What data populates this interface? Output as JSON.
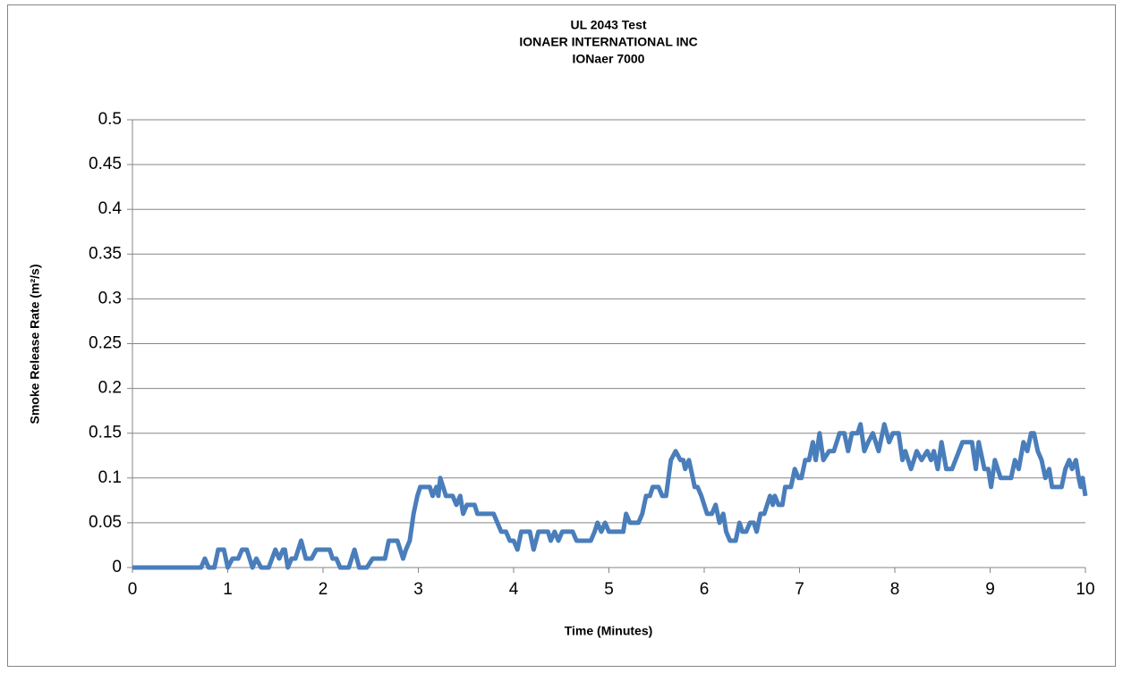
{
  "chart_data": {
    "type": "line",
    "title": [
      "UL 2043 Test",
      "IONAER INTERNATIONAL INC",
      "IONaer 7000"
    ],
    "xlabel": "Time (Minutes)",
    "ylabel": "Smoke Release Rate (m²/s)",
    "color": "#4a7ebb",
    "xlim": [
      0,
      10
    ],
    "xticks": [
      0,
      1,
      2,
      3,
      4,
      5,
      6,
      7,
      8,
      9,
      10
    ],
    "ylim": [
      0,
      0.5
    ],
    "yticks": [
      0,
      0.05,
      0.1,
      0.15,
      0.2,
      0.25,
      0.3,
      0.35,
      0.4,
      0.45,
      0.5
    ],
    "grid": true,
    "x": [
      0,
      0.72,
      0.76,
      0.8,
      0.86,
      0.9,
      0.96,
      1.0,
      1.05,
      1.11,
      1.15,
      1.2,
      1.26,
      1.3,
      1.35,
      1.43,
      1.5,
      1.54,
      1.58,
      1.6,
      1.63,
      1.67,
      1.71,
      1.77,
      1.82,
      1.88,
      1.93,
      2.07,
      2.1,
      2.14,
      2.18,
      2.27,
      2.33,
      2.38,
      2.46,
      2.52,
      2.65,
      2.69,
      2.78,
      2.84,
      2.87,
      2.91,
      2.95,
      2.99,
      3.02,
      3.12,
      3.15,
      3.19,
      3.21,
      3.23,
      3.29,
      3.36,
      3.4,
      3.44,
      3.47,
      3.51,
      3.59,
      3.62,
      3.79,
      3.87,
      3.92,
      3.96,
      4.0,
      4.04,
      4.08,
      4.17,
      4.21,
      4.26,
      4.36,
      4.39,
      4.43,
      4.47,
      4.51,
      4.62,
      4.66,
      4.81,
      4.85,
      4.88,
      4.92,
      4.96,
      5.0,
      5.15,
      5.18,
      5.22,
      5.31,
      5.35,
      5.39,
      5.43,
      5.46,
      5.52,
      5.56,
      5.6,
      5.65,
      5.7,
      5.75,
      5.78,
      5.8,
      5.84,
      5.9,
      5.93,
      5.97,
      6.03,
      6.08,
      6.12,
      6.16,
      6.2,
      6.23,
      6.27,
      6.33,
      6.37,
      6.4,
      6.44,
      6.48,
      6.52,
      6.55,
      6.59,
      6.63,
      6.69,
      6.72,
      6.74,
      6.78,
      6.82,
      6.85,
      6.91,
      6.95,
      6.99,
      7.02,
      7.06,
      7.1,
      7.14,
      7.17,
      7.21,
      7.25,
      7.31,
      7.36,
      7.42,
      7.47,
      7.51,
      7.55,
      7.61,
      7.64,
      7.68,
      7.72,
      7.77,
      7.83,
      7.89,
      7.94,
      7.98,
      8.04,
      8.08,
      8.11,
      8.17,
      8.23,
      8.28,
      8.34,
      8.38,
      8.41,
      8.45,
      8.49,
      8.54,
      8.6,
      8.71,
      8.81,
      8.85,
      8.88,
      8.94,
      8.98,
      9.01,
      9.05,
      9.11,
      9.22,
      9.26,
      9.3,
      9.35,
      9.39,
      9.43,
      9.46,
      9.5,
      9.54,
      9.58,
      9.62,
      9.65,
      9.75,
      9.79,
      9.83,
      9.86,
      9.9,
      9.93,
      9.95,
      9.97,
      10
    ],
    "values": [
      0,
      0,
      0.01,
      0,
      0,
      0.02,
      0.02,
      0,
      0.01,
      0.01,
      0.02,
      0.02,
      0,
      0.01,
      0,
      0,
      0.02,
      0.01,
      0.02,
      0.02,
      0,
      0.01,
      0.01,
      0.03,
      0.01,
      0.01,
      0.02,
      0.02,
      0.01,
      0.01,
      0,
      0,
      0.02,
      0,
      0,
      0.01,
      0.01,
      0.03,
      0.03,
      0.01,
      0.02,
      0.03,
      0.06,
      0.08,
      0.09,
      0.09,
      0.08,
      0.09,
      0.08,
      0.1,
      0.08,
      0.08,
      0.07,
      0.08,
      0.06,
      0.07,
      0.07,
      0.06,
      0.06,
      0.04,
      0.04,
      0.03,
      0.03,
      0.02,
      0.04,
      0.04,
      0.02,
      0.04,
      0.04,
      0.03,
      0.04,
      0.03,
      0.04,
      0.04,
      0.03,
      0.03,
      0.04,
      0.05,
      0.04,
      0.05,
      0.04,
      0.04,
      0.06,
      0.05,
      0.05,
      0.06,
      0.08,
      0.08,
      0.09,
      0.09,
      0.08,
      0.08,
      0.12,
      0.13,
      0.12,
      0.12,
      0.11,
      0.12,
      0.09,
      0.09,
      0.08,
      0.06,
      0.06,
      0.07,
      0.05,
      0.06,
      0.04,
      0.03,
      0.03,
      0.05,
      0.04,
      0.04,
      0.05,
      0.05,
      0.04,
      0.06,
      0.06,
      0.08,
      0.07,
      0.08,
      0.07,
      0.07,
      0.09,
      0.09,
      0.11,
      0.1,
      0.1,
      0.12,
      0.12,
      0.14,
      0.12,
      0.15,
      0.12,
      0.13,
      0.13,
      0.15,
      0.15,
      0.13,
      0.15,
      0.15,
      0.16,
      0.13,
      0.14,
      0.15,
      0.13,
      0.16,
      0.14,
      0.15,
      0.15,
      0.12,
      0.13,
      0.11,
      0.13,
      0.12,
      0.13,
      0.12,
      0.13,
      0.11,
      0.14,
      0.11,
      0.11,
      0.14,
      0.14,
      0.11,
      0.14,
      0.11,
      0.11,
      0.09,
      0.12,
      0.1,
      0.1,
      0.12,
      0.11,
      0.14,
      0.13,
      0.15,
      0.15,
      0.13,
      0.12,
      0.1,
      0.11,
      0.09,
      0.09,
      0.11,
      0.12,
      0.11,
      0.12,
      0.1,
      0.09,
      0.1,
      0.08
    ]
  }
}
